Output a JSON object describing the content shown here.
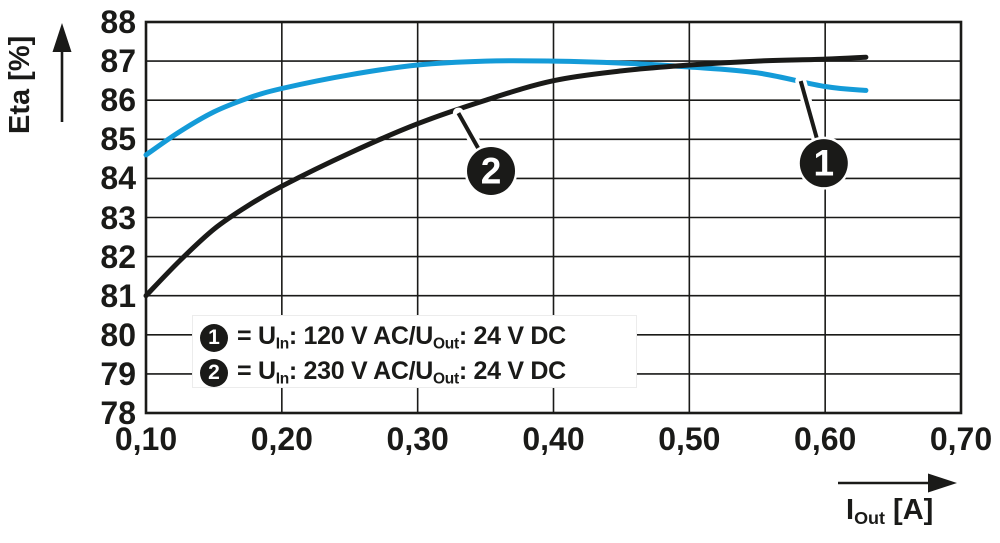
{
  "figure": {
    "background": "#ffffff",
    "text_color": "#1a1a18",
    "accent_blue": "#149bd8"
  },
  "chart_data": {
    "type": "line",
    "title": "",
    "xlabel": "I_Out [A]",
    "ylabel": "Eta [%]",
    "xlim": [
      0.1,
      0.7
    ],
    "ylim": [
      78,
      88
    ],
    "grid": true,
    "decimal_separator": ",",
    "x_tick_values": [
      0.1,
      0.2,
      0.3,
      0.4,
      0.5,
      0.6,
      0.7
    ],
    "x_tick_labels": [
      "0,10",
      "0,20",
      "0,30",
      "0,40",
      "0,50",
      "0,60",
      "0,70"
    ],
    "y_tick_values": [
      88,
      87,
      86,
      85,
      84,
      83,
      82,
      81,
      80,
      79,
      78
    ],
    "y_tick_labels": [
      "88",
      "87",
      "86",
      "85",
      "84",
      "83",
      "82",
      "81",
      "80",
      "79",
      "78"
    ],
    "legend_position": "inside bottom-left",
    "series": [
      {
        "id": "1",
        "name": "U_In: 120 V AC/U_Out: 24 V DC",
        "color": "#149bd8",
        "x": [
          0.1,
          0.125,
          0.15,
          0.175,
          0.2,
          0.25,
          0.3,
          0.35,
          0.4,
          0.45,
          0.5,
          0.55,
          0.6,
          0.63
        ],
        "y": [
          84.6,
          85.2,
          85.7,
          86.05,
          86.3,
          86.65,
          86.9,
          87.0,
          87.0,
          86.95,
          86.85,
          86.7,
          86.35,
          86.25
        ]
      },
      {
        "id": "2",
        "name": "U_In: 230 V AC/U_Out: 24 V DC",
        "color": "#1a1a18",
        "x": [
          0.1,
          0.125,
          0.15,
          0.175,
          0.2,
          0.25,
          0.3,
          0.35,
          0.4,
          0.45,
          0.5,
          0.55,
          0.6,
          0.63
        ],
        "y": [
          81.0,
          81.9,
          82.7,
          83.3,
          83.8,
          84.65,
          85.4,
          86.0,
          86.5,
          86.75,
          86.9,
          87.0,
          87.05,
          87.1
        ]
      }
    ],
    "annotations": [
      {
        "label": "1",
        "attach": {
          "x": 0.582,
          "y": 86.49
        },
        "badge": {
          "x": 0.599,
          "y": 84.39
        }
      },
      {
        "label": "2",
        "attach": {
          "x": 0.33,
          "y": 85.67
        },
        "badge": {
          "x": 0.354,
          "y": 84.19
        }
      }
    ]
  },
  "legend": {
    "rows": [
      {
        "badge": "1",
        "parts": [
          {
            "t": " = U"
          },
          {
            "t": "In",
            "sub": true
          },
          {
            "t": ": 120 V AC/U"
          },
          {
            "t": "Out",
            "sub": true
          },
          {
            "t": ": 24 V DC"
          }
        ]
      },
      {
        "badge": "2",
        "parts": [
          {
            "t": " = U"
          },
          {
            "t": "In",
            "sub": true
          },
          {
            "t": ": 230 V AC/U"
          },
          {
            "t": "Out",
            "sub": true
          },
          {
            "t": ": 24 V DC"
          }
        ]
      }
    ]
  },
  "x_axis_label_parts": [
    {
      "t": "I"
    },
    {
      "t": "Out",
      "sub": true
    },
    {
      "t": " [A]"
    }
  ]
}
